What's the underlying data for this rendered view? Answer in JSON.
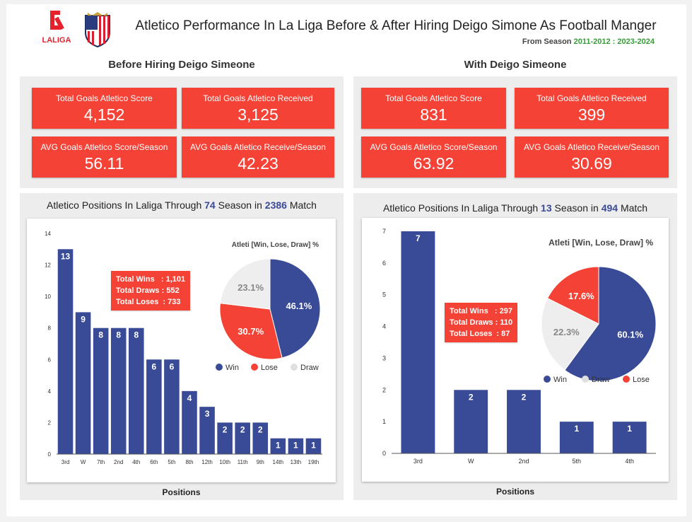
{
  "header": {
    "title": "Atletico Performance In La Liga Before & After Hiring Deigo Simone As Football Manger",
    "subtitle_prefix": "From Season",
    "season_before": "2011-2012",
    "season_sep": ":",
    "season_after": "2023-2024",
    "laliga_logo_text": "LALIGA"
  },
  "colors": {
    "kpi_red": "#f44336",
    "bar_blue": "#394a96",
    "lose_red": "#f44336",
    "draw_grey": "#eeeeee",
    "accent_green": "#3a9a3a"
  },
  "before": {
    "section_title": "Before Hiring Deigo Simeone",
    "kpis": [
      {
        "label": "Total Goals Atletico Score",
        "value": "4,152"
      },
      {
        "label": "Total Goals Atletico Received",
        "value": "3,125"
      },
      {
        "label": "AVG Goals Atletico Score/Season",
        "value": "56.11"
      },
      {
        "label": "AVG Goals Atletico Receive/Season",
        "value": "42.23"
      }
    ],
    "chart_title": {
      "prefix": "Atletico Positions  In Laliga Through",
      "seasons": "74",
      "mid": "Season in",
      "matches": "2386",
      "suffix": "Match"
    },
    "stats": {
      "wins_label": "Total Wins   :",
      "wins": "1,101",
      "draws_label": "Total Draws :",
      "draws": "552",
      "loses_label": "Total Loses  :",
      "loses": "733"
    },
    "pie_title": "Atleti [Win, Lose, Draw] %",
    "xlabel": "Positions"
  },
  "after": {
    "section_title": "With Deigo Simeone",
    "kpis": [
      {
        "label": "Total Goals Atletico Score",
        "value": "831"
      },
      {
        "label": "Total Goals Atletico Received",
        "value": "399"
      },
      {
        "label": "AVG Goals Atletico Score/Season",
        "value": "63.92"
      },
      {
        "label": "AVG Goals Atletico Receive/Season",
        "value": "30.69"
      }
    ],
    "chart_title": {
      "prefix": "Atletico Positions  In Laliga Through",
      "seasons": "13",
      "mid": "Season in",
      "matches": "494",
      "suffix": "Match"
    },
    "stats": {
      "wins_label": "Total Wins   :",
      "wins": "297",
      "draws_label": "Total Draws :",
      "draws": "110",
      "loses_label": "Total Loses  :",
      "loses": "87"
    },
    "pie_title": "Atleti [Win, Lose, Draw] %",
    "xlabel": "Positions"
  },
  "chart_data": [
    {
      "type": "bar",
      "categories": [
        "3rd",
        "W",
        "7th",
        "2nd",
        "4th",
        "6th",
        "5th",
        "8th",
        "12th",
        "10th",
        "11th",
        "9th",
        "14th",
        "13th",
        "19th"
      ],
      "values": [
        13,
        9,
        8,
        8,
        8,
        6,
        6,
        4,
        3,
        2,
        2,
        2,
        1,
        1,
        1
      ],
      "xlabel": "Positions",
      "ylim": [
        0,
        14
      ],
      "yticks": [
        0,
        2,
        4,
        6,
        8,
        10,
        12,
        14
      ]
    },
    {
      "type": "pie",
      "title": "Atleti [Win, Lose, Draw] %",
      "labels": [
        "Win",
        "Lose",
        "Draw"
      ],
      "values": [
        46.1,
        30.7,
        23.1
      ],
      "display": [
        "46.1%",
        "30.7%",
        "23.1%"
      ],
      "colors": [
        "#394a96",
        "#f44336",
        "#eeeeee"
      ],
      "legend": "bottom"
    },
    {
      "type": "bar",
      "categories": [
        "3rd",
        "W",
        "2nd",
        "5th",
        "4th"
      ],
      "values": [
        7,
        2,
        2,
        1,
        1
      ],
      "xlabel": "Positions",
      "ylim": [
        0,
        7
      ],
      "yticks": [
        0,
        1,
        2,
        3,
        4,
        5,
        6,
        7
      ]
    },
    {
      "type": "pie",
      "title": "Atleti [Win, Lose, Draw] %",
      "labels": [
        "Win",
        "Draw",
        "Lose"
      ],
      "values": [
        60.1,
        22.3,
        17.6
      ],
      "display": [
        "60.1%",
        "22.3%",
        "17.6%"
      ],
      "colors": [
        "#394a96",
        "#eeeeee",
        "#f44336"
      ],
      "legend": "bottom"
    }
  ]
}
